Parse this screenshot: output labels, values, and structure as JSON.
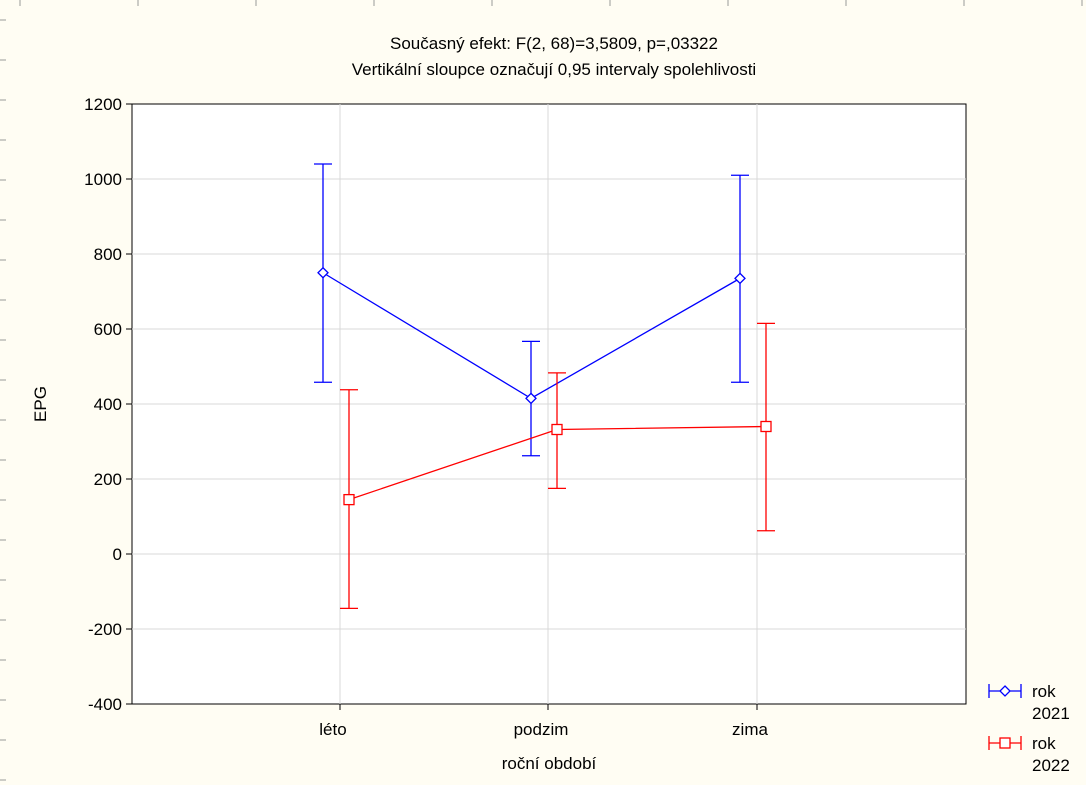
{
  "chart_data": {
    "type": "line",
    "title": "Současný efekt: F(2, 68)=3,5809, p=,03322",
    "subtitle": "Vertikální sloupce označují 0,95 intervaly spolehlivosti",
    "xlabel": "roční období",
    "ylabel": "EPG",
    "categories": [
      "léto",
      "podzim",
      "zima"
    ],
    "ylim": [
      -400,
      1200
    ],
    "yticks": [
      -400,
      -200,
      0,
      200,
      400,
      600,
      800,
      1000,
      1200
    ],
    "grid": true,
    "legend_position": "bottom-right",
    "series": [
      {
        "name": "rok 2021",
        "color": "#0000ff",
        "marker": "diamond",
        "values": [
          750,
          415,
          735
        ],
        "ci_low": [
          458,
          262,
          458
        ],
        "ci_high": [
          1040,
          567,
          1010
        ]
      },
      {
        "name": "rok 2022",
        "color": "#ff0000",
        "marker": "square",
        "values": [
          145,
          332,
          340
        ],
        "ci_low": [
          -145,
          175,
          62
        ],
        "ci_high": [
          438,
          483,
          615
        ]
      }
    ]
  },
  "colors": {
    "page_background": "#fffdf3",
    "plot_background": "#ffffff",
    "grid": "#d9d9d9"
  }
}
